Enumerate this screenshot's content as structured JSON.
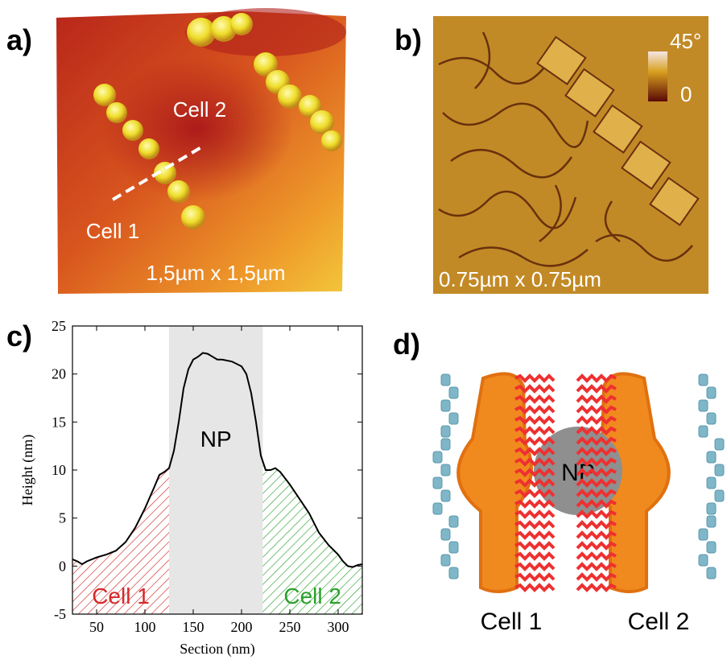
{
  "panels": {
    "a": {
      "label": "a)",
      "texts": [
        "Cell 2",
        "Cell 1",
        "1,5µm x 1,5µm"
      ]
    },
    "b": {
      "label": "b)",
      "scale_text": "0.75µm x 0.75µm",
      "colorbar_max": "45°",
      "colorbar_min": "0"
    },
    "c": {
      "label": "c)"
    },
    "d": {
      "label": "d)",
      "particle": "NP",
      "cells": [
        "Cell 1",
        "Cell 2"
      ]
    }
  },
  "chart_data": {
    "type": "line",
    "xlabel": "Section (nm)",
    "ylabel": "Height (nm)",
    "x": [
      25,
      30,
      35,
      40,
      50,
      60,
      70,
      80,
      90,
      100,
      110,
      115,
      120,
      125,
      130,
      135,
      140,
      145,
      150,
      155,
      160,
      165,
      170,
      175,
      180,
      190,
      200,
      205,
      210,
      215,
      220,
      225,
      230,
      235,
      240,
      250,
      260,
      270,
      280,
      290,
      300,
      305,
      310,
      315,
      320,
      325
    ],
    "values": [
      0.7,
      0.5,
      0.2,
      0.5,
      0.9,
      1.2,
      1.6,
      2.5,
      4,
      6,
      8.3,
      9.5,
      9.8,
      10.2,
      12,
      15,
      18.5,
      20.5,
      21.5,
      21.8,
      22.2,
      22.1,
      21.8,
      21.5,
      21.5,
      21.3,
      20.8,
      20,
      18,
      15,
      11.5,
      10,
      10,
      10.2,
      9.8,
      8.5,
      7,
      5.5,
      3.5,
      2.2,
      1.2,
      0.5,
      0,
      -0.1,
      0.1,
      0.2
    ],
    "color": "#000000",
    "xlim": [
      25,
      325
    ],
    "ylim": [
      -5,
      25
    ],
    "xticks": [
      50,
      100,
      150,
      200,
      250,
      300
    ],
    "yticks": [
      -5,
      0,
      5,
      10,
      15,
      20,
      25
    ],
    "regions": [
      {
        "name": "Cell 1",
        "from": 25,
        "to": 125,
        "color": "#d62728",
        "fill": "hatch"
      },
      {
        "name": "NP",
        "from": 125,
        "to": 222,
        "color": "#e6e6e6",
        "fill": "solid"
      },
      {
        "name": "Cell 2",
        "from": 222,
        "to": 325,
        "color": "#2ca02c",
        "fill": "hatch"
      }
    ]
  }
}
